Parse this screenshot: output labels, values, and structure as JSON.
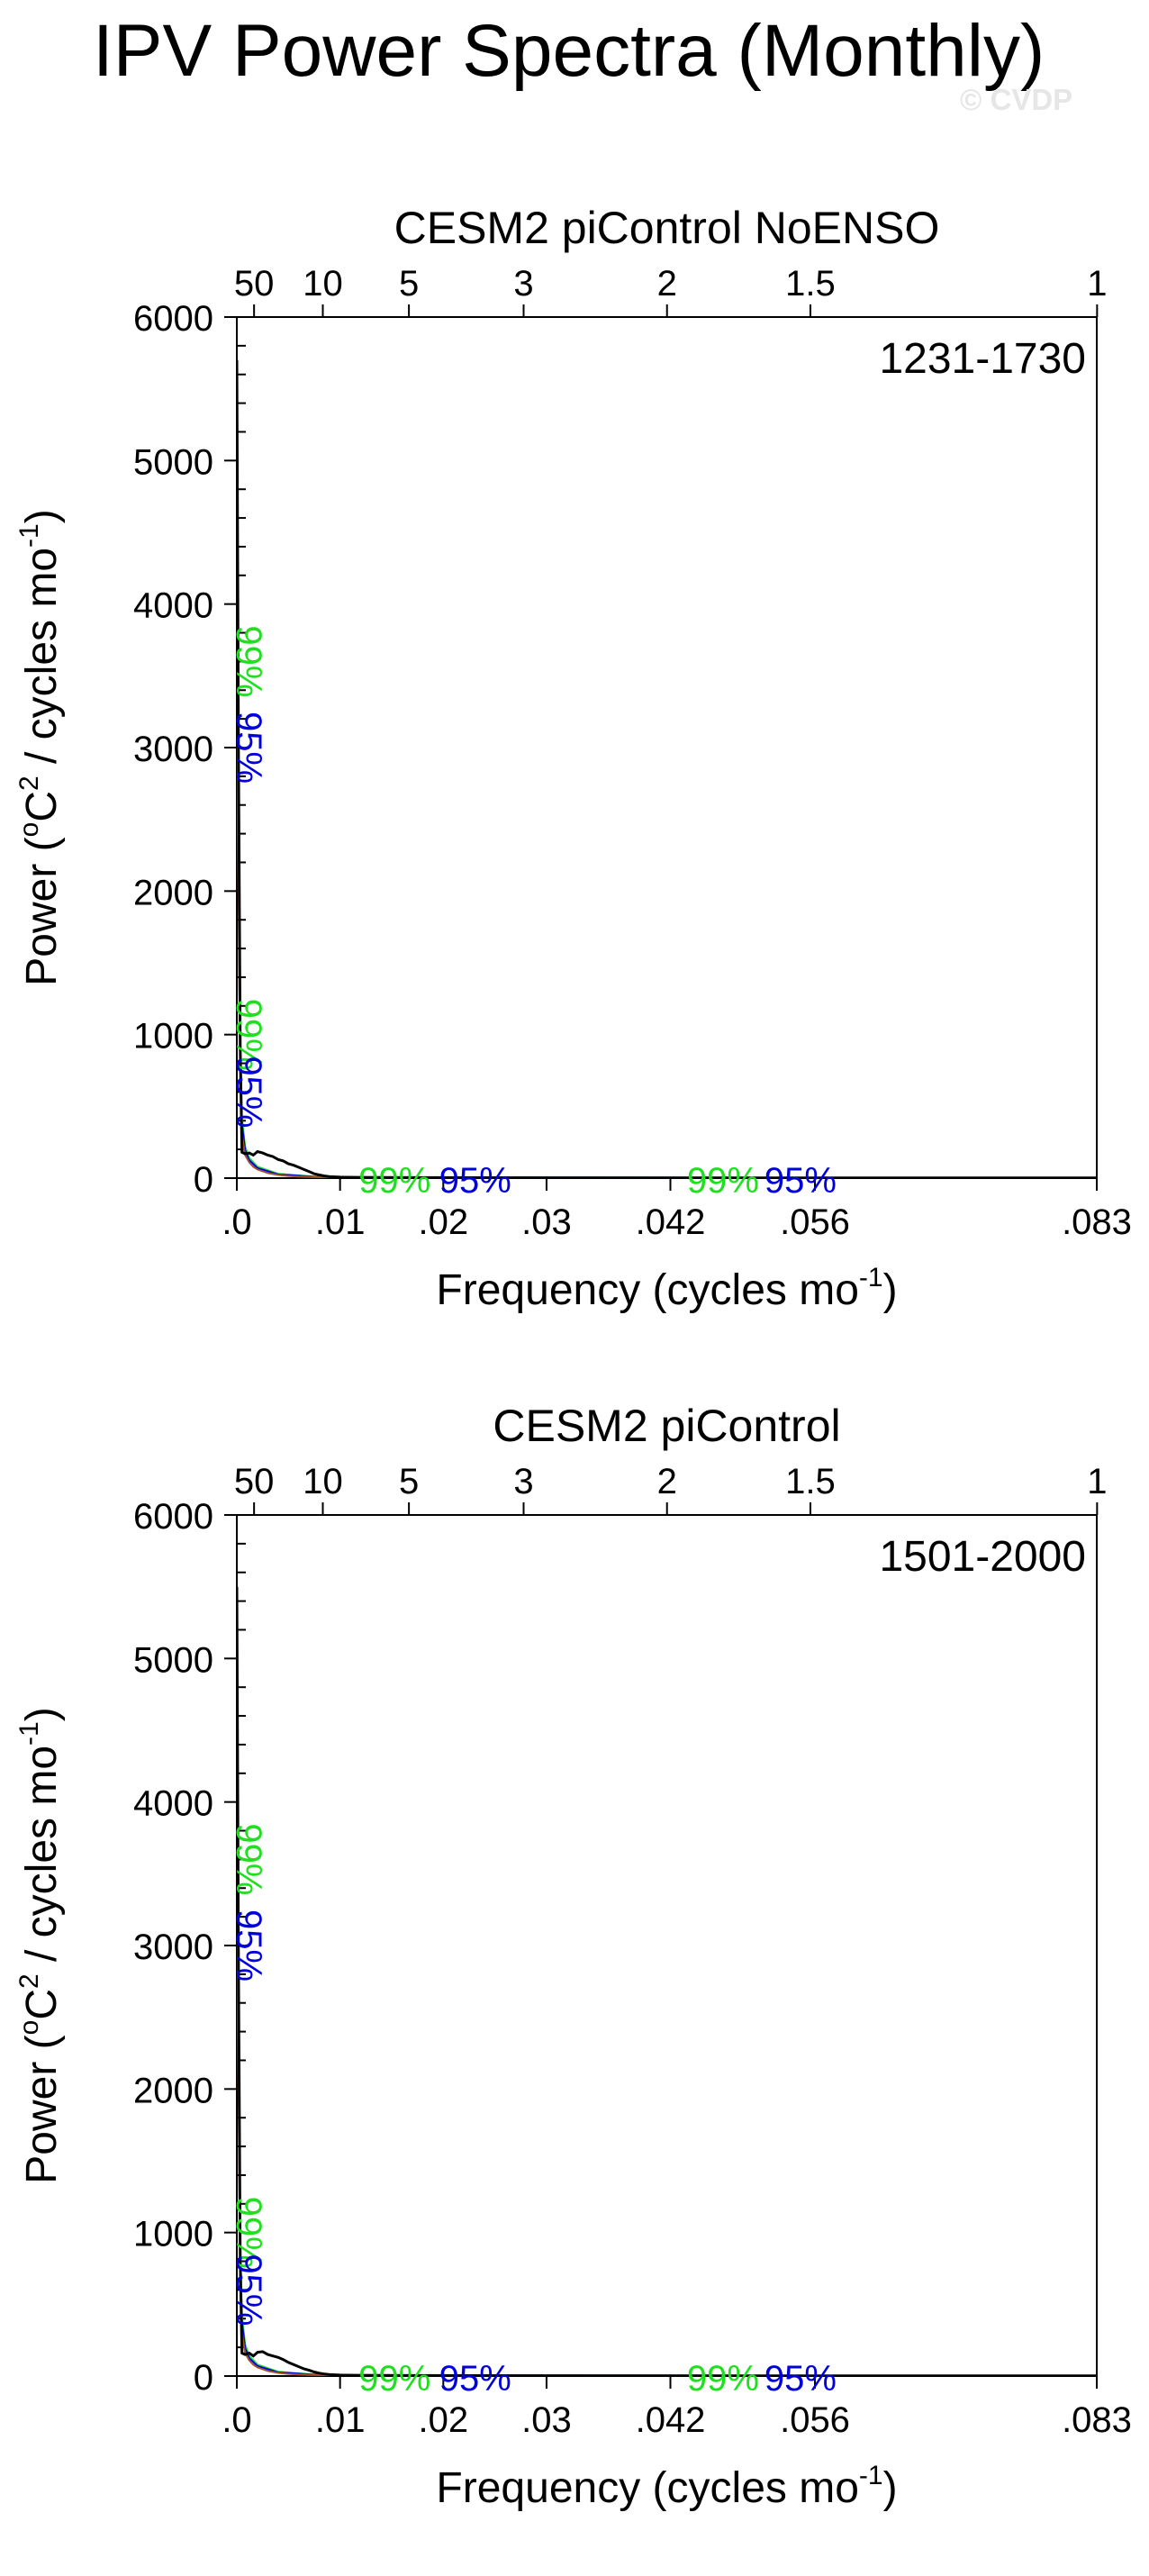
{
  "page": {
    "title": "IPV Power Spectra (Monthly)",
    "watermark": "© CVDP"
  },
  "colors": {
    "spectrum": "#000000",
    "red_noise": "#a0522d",
    "sig99": "#1fe01f",
    "sig95": "#0000dd",
    "axis": "#000000",
    "watermark": "#e6e6e6"
  },
  "chart_data": [
    {
      "type": "line",
      "title": "CESM2 piControl NoENSO",
      "period_label": "1231-1730",
      "xlabel": "Frequency (cycles mo",
      "xlabel_sup": "-1",
      "xlabel_close": ")",
      "ylabel": "Power (",
      "ylabel_unit_sup": "o",
      "ylabel_unit": "C",
      "ylabel_unit_sup2": "2",
      "ylabel_tail": " / cycles mo",
      "ylabel_sup": "-1",
      "ylabel_close": ")",
      "xlim": [
        0,
        0.0833
      ],
      "ylim": [
        0,
        6000
      ],
      "yticks": [
        0,
        1000,
        2000,
        3000,
        4000,
        5000,
        6000
      ],
      "xticks": [
        {
          "value": 0.0,
          "label": ".0"
        },
        {
          "value": 0.01,
          "label": ".01"
        },
        {
          "value": 0.02,
          "label": ".02"
        },
        {
          "value": 0.03,
          "label": ".03"
        },
        {
          "value": 0.042,
          "label": ".042"
        },
        {
          "value": 0.056,
          "label": ".056"
        },
        {
          "value": 0.0833,
          "label": ".083"
        }
      ],
      "top_ticks": [
        {
          "value": 0.00167,
          "label": "50"
        },
        {
          "value": 0.00833,
          "label": "10"
        },
        {
          "value": 0.01667,
          "label": "5"
        },
        {
          "value": 0.02778,
          "label": "3"
        },
        {
          "value": 0.04167,
          "label": "2"
        },
        {
          "value": 0.05556,
          "label": "1.5"
        },
        {
          "value": 0.08333,
          "label": "1"
        }
      ],
      "series": [
        {
          "key": "spectrum",
          "x": [
            0.0,
            0.00017,
            0.00033,
            0.0005,
            0.0008,
            0.0012,
            0.0016,
            0.002,
            0.0025,
            0.003,
            0.0035,
            0.004,
            0.0045,
            0.005,
            0.0055,
            0.006,
            0.0065,
            0.007,
            0.0075,
            0.008,
            0.0085,
            0.009,
            0.01,
            0.012,
            0.015,
            0.02,
            0.03,
            0.04,
            0.05,
            0.06,
            0.07,
            0.0833
          ],
          "y": [
            5700,
            2900,
            900,
            180,
            170,
            175,
            160,
            185,
            175,
            160,
            150,
            130,
            120,
            100,
            90,
            75,
            60,
            45,
            30,
            22,
            15,
            10,
            7,
            5,
            4,
            3,
            2,
            2,
            1,
            1,
            1,
            1
          ]
        },
        {
          "key": "red_noise",
          "x": [
            0.0,
            0.00017,
            0.00033,
            0.0005,
            0.0008,
            0.0012,
            0.0016,
            0.002,
            0.003,
            0.004,
            0.005,
            0.006,
            0.008,
            0.01,
            0.015,
            0.02,
            0.04,
            0.0833
          ],
          "y": [
            3000,
            2000,
            700,
            300,
            160,
            110,
            80,
            60,
            35,
            22,
            15,
            10,
            6,
            4,
            2,
            1,
            1,
            0
          ]
        },
        {
          "key": "sig99",
          "x": [
            0.0,
            0.00017,
            0.00033,
            0.0005,
            0.0008,
            0.0012,
            0.002,
            0.004,
            0.008,
            0.0833
          ],
          "y": [
            3800,
            2600,
            950,
            420,
            220,
            140,
            80,
            30,
            8,
            0
          ]
        },
        {
          "key": "sig95",
          "x": [
            0.0,
            0.00017,
            0.00033,
            0.0005,
            0.0008,
            0.0012,
            0.002,
            0.004,
            0.008,
            0.0833
          ],
          "y": [
            3400,
            2300,
            820,
            370,
            195,
            125,
            70,
            26,
            7,
            0
          ]
        }
      ],
      "sig_labels": [
        {
          "text": "99%",
          "color": "sig99",
          "x": 0.0,
          "y": 3600,
          "rotate": true
        },
        {
          "text": "95%",
          "color": "sig95",
          "x": 0.0,
          "y": 3000,
          "rotate": true
        },
        {
          "text": "99%",
          "color": "sig99",
          "x": 0.0,
          "y": 1000,
          "rotate": true
        },
        {
          "text": "95%",
          "color": "sig95",
          "x": 0.0,
          "y": 600,
          "rotate": true
        },
        {
          "text": "99%",
          "color": "sig99",
          "x": 0.0118,
          "y": 0,
          "rotate": false
        },
        {
          "text": "95%",
          "color": "sig95",
          "x": 0.0196,
          "y": 0,
          "rotate": false
        },
        {
          "text": "99%",
          "color": "sig99",
          "x": 0.0436,
          "y": 0,
          "rotate": false
        },
        {
          "text": "95%",
          "color": "sig95",
          "x": 0.0511,
          "y": 0,
          "rotate": false
        }
      ],
      "grid": false
    },
    {
      "type": "line",
      "title": "CESM2 piControl",
      "period_label": "1501-2000",
      "xlabel": "Frequency (cycles mo",
      "xlabel_sup": "-1",
      "xlabel_close": ")",
      "ylabel": "Power (",
      "ylabel_unit_sup": "o",
      "ylabel_unit": "C",
      "ylabel_unit_sup2": "2",
      "ylabel_tail": " / cycles mo",
      "ylabel_sup": "-1",
      "ylabel_close": ")",
      "xlim": [
        0,
        0.0833
      ],
      "ylim": [
        0,
        6000
      ],
      "yticks": [
        0,
        1000,
        2000,
        3000,
        4000,
        5000,
        6000
      ],
      "xticks": [
        {
          "value": 0.0,
          "label": ".0"
        },
        {
          "value": 0.01,
          "label": ".01"
        },
        {
          "value": 0.02,
          "label": ".02"
        },
        {
          "value": 0.03,
          "label": ".03"
        },
        {
          "value": 0.042,
          "label": ".042"
        },
        {
          "value": 0.056,
          "label": ".056"
        },
        {
          "value": 0.0833,
          "label": ".083"
        }
      ],
      "top_ticks": [
        {
          "value": 0.00167,
          "label": "50"
        },
        {
          "value": 0.00833,
          "label": "10"
        },
        {
          "value": 0.01667,
          "label": "5"
        },
        {
          "value": 0.02778,
          "label": "3"
        },
        {
          "value": 0.04167,
          "label": "2"
        },
        {
          "value": 0.05556,
          "label": "1.5"
        },
        {
          "value": 0.08333,
          "label": "1"
        }
      ],
      "series": [
        {
          "key": "spectrum",
          "x": [
            0.0,
            0.00017,
            0.00033,
            0.0005,
            0.0008,
            0.0012,
            0.0016,
            0.002,
            0.0025,
            0.003,
            0.0035,
            0.004,
            0.0045,
            0.005,
            0.0055,
            0.006,
            0.0065,
            0.007,
            0.0075,
            0.008,
            0.0085,
            0.009,
            0.01,
            0.012,
            0.015,
            0.02,
            0.03,
            0.04,
            0.05,
            0.06,
            0.07,
            0.0833
          ],
          "y": [
            5500,
            2800,
            800,
            160,
            150,
            160,
            140,
            165,
            170,
            150,
            140,
            130,
            115,
            95,
            80,
            65,
            50,
            40,
            28,
            20,
            14,
            10,
            7,
            5,
            4,
            3,
            2,
            2,
            1,
            1,
            1,
            1
          ]
        },
        {
          "key": "red_noise",
          "x": [
            0.0,
            0.00017,
            0.00033,
            0.0005,
            0.0008,
            0.0012,
            0.0016,
            0.002,
            0.003,
            0.004,
            0.005,
            0.006,
            0.008,
            0.01,
            0.015,
            0.02,
            0.04,
            0.0833
          ],
          "y": [
            3000,
            2000,
            700,
            300,
            160,
            110,
            80,
            60,
            35,
            22,
            15,
            10,
            6,
            4,
            2,
            1,
            1,
            0
          ]
        },
        {
          "key": "sig99",
          "x": [
            0.0,
            0.00017,
            0.00033,
            0.0005,
            0.0008,
            0.0012,
            0.002,
            0.004,
            0.008,
            0.0833
          ],
          "y": [
            3800,
            2600,
            950,
            420,
            220,
            140,
            80,
            30,
            8,
            0
          ]
        },
        {
          "key": "sig95",
          "x": [
            0.0,
            0.00017,
            0.00033,
            0.0005,
            0.0008,
            0.0012,
            0.002,
            0.004,
            0.008,
            0.0833
          ],
          "y": [
            3400,
            2300,
            820,
            370,
            195,
            125,
            70,
            26,
            7,
            0
          ]
        }
      ],
      "sig_labels": [
        {
          "text": "99%",
          "color": "sig99",
          "x": 0.0,
          "y": 3600,
          "rotate": true
        },
        {
          "text": "95%",
          "color": "sig95",
          "x": 0.0,
          "y": 3000,
          "rotate": true
        },
        {
          "text": "99%",
          "color": "sig99",
          "x": 0.0,
          "y": 1000,
          "rotate": true
        },
        {
          "text": "95%",
          "color": "sig95",
          "x": 0.0,
          "y": 600,
          "rotate": true
        },
        {
          "text": "99%",
          "color": "sig99",
          "x": 0.0118,
          "y": 0,
          "rotate": false
        },
        {
          "text": "95%",
          "color": "sig95",
          "x": 0.0196,
          "y": 0,
          "rotate": false
        },
        {
          "text": "99%",
          "color": "sig99",
          "x": 0.0436,
          "y": 0,
          "rotate": false
        },
        {
          "text": "95%",
          "color": "sig95",
          "x": 0.0511,
          "y": 0,
          "rotate": false
        }
      ],
      "grid": false
    }
  ]
}
